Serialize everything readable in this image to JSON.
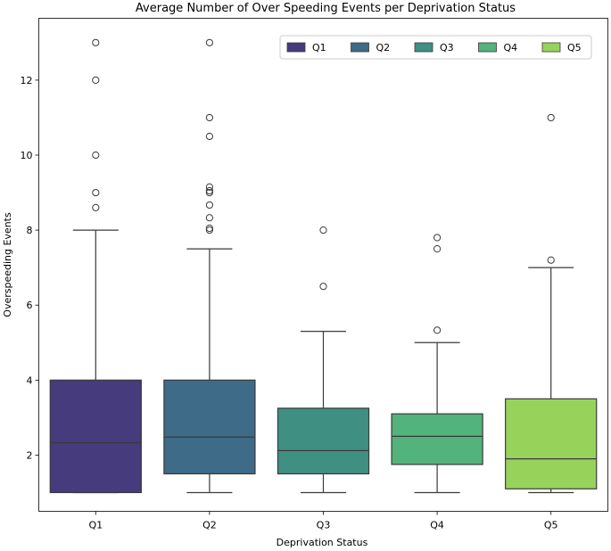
{
  "chart_data": {
    "type": "box",
    "title": "Average Number of Over Speeding Events per Deprivation Status",
    "xlabel": "Deprivation Status",
    "ylabel": "Overspeeding Events",
    "ylim": [
      0.5,
      13.65
    ],
    "yticks": [
      2,
      4,
      6,
      8,
      10,
      12
    ],
    "categories": [
      "Q1",
      "Q2",
      "Q3",
      "Q4",
      "Q5"
    ],
    "series": [
      {
        "name": "Q1",
        "color": "#463b7c",
        "whisker_low": 1,
        "q1": 1,
        "median": 2.33,
        "q3": 4,
        "whisker_high": 8,
        "outliers": [
          8.6,
          9,
          10,
          12,
          13
        ]
      },
      {
        "name": "Q2",
        "color": "#3e6b87",
        "whisker_low": 1,
        "q1": 1.5,
        "median": 2.48,
        "q3": 4,
        "whisker_high": 7.5,
        "outliers": [
          8,
          8.05,
          8.33,
          8.67,
          9,
          9.05,
          9.15,
          10.5,
          11,
          13
        ]
      },
      {
        "name": "Q3",
        "color": "#3f8f82",
        "whisker_low": 1,
        "q1": 1.5,
        "median": 2.12,
        "q3": 3.25,
        "whisker_high": 5.3,
        "outliers": [
          6.5,
          8
        ]
      },
      {
        "name": "Q4",
        "color": "#52b37c",
        "whisker_low": 1,
        "q1": 1.75,
        "median": 2.5,
        "q3": 3.1,
        "whisker_high": 5,
        "outliers": [
          5.33,
          7.5,
          7.8
        ]
      },
      {
        "name": "Q5",
        "color": "#97d35b",
        "whisker_low": 1,
        "q1": 1.1,
        "median": 1.9,
        "q3": 3.5,
        "whisker_high": 7,
        "outliers": [
          7.2,
          11
        ]
      }
    ],
    "legend": {
      "position": "top-right",
      "entries": [
        "Q1",
        "Q2",
        "Q3",
        "Q4",
        "Q5"
      ]
    },
    "grid": false
  }
}
